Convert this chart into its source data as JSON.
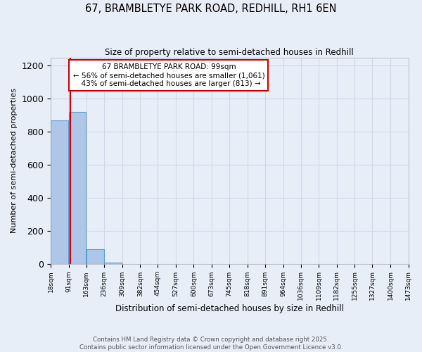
{
  "title1": "67, BRAMBLETYE PARK ROAD, REDHILL, RH1 6EN",
  "title2": "Size of property relative to semi-detached houses in Redhill",
  "xlabel": "Distribution of semi-detached houses by size in Redhill",
  "ylabel": "Number of semi-detached properties",
  "property_size": 99,
  "property_label": "67 BRAMBLETYE PARK ROAD: 99sqm",
  "pct_smaller": 56,
  "n_smaller": 1061,
  "pct_larger": 43,
  "n_larger": 813,
  "bin_edges": [
    18,
    91,
    163,
    236,
    309,
    382,
    454,
    527,
    600,
    673,
    745,
    818,
    891,
    964,
    1036,
    1109,
    1182,
    1255,
    1327,
    1400,
    1473
  ],
  "bar_heights": [
    870,
    920,
    90,
    5,
    0,
    0,
    0,
    0,
    0,
    0,
    0,
    0,
    0,
    0,
    0,
    0,
    0,
    0,
    0,
    0
  ],
  "bar_color": "#aec6e8",
  "bar_edge_color": "#5a9fd4",
  "line_color": "#cc0000",
  "background_color": "#e8eef8",
  "grid_color": "#d0d8e8",
  "annotation_box_color": "#cc0000",
  "ylim": [
    0,
    1250
  ],
  "yticks": [
    0,
    200,
    400,
    600,
    800,
    1000,
    1200
  ],
  "footer_line1": "Contains HM Land Registry data © Crown copyright and database right 2025.",
  "footer_line2": "Contains public sector information licensed under the Open Government Licence v3.0."
}
